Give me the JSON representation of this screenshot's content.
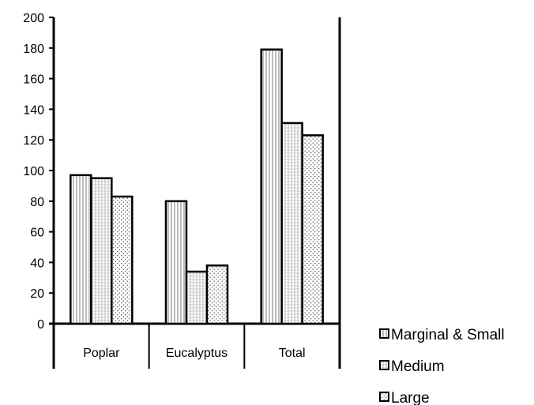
{
  "chart_data": {
    "type": "bar",
    "categories": [
      "Poplar",
      "Eucalyptus",
      "Total"
    ],
    "series": [
      {
        "name": "Marginal & Small",
        "values": [
          97,
          80,
          179
        ]
      },
      {
        "name": "Medium",
        "values": [
          95,
          34,
          131
        ]
      },
      {
        "name": "Large",
        "values": [
          83,
          38,
          123
        ]
      }
    ],
    "ylim": [
      0,
      200
    ],
    "yticks": [
      0,
      20,
      40,
      60,
      80,
      100,
      120,
      140,
      160,
      180,
      200
    ],
    "legend_position": "bottom-right",
    "grid": false
  }
}
